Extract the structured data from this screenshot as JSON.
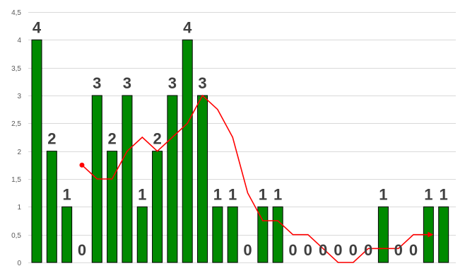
{
  "chart_data": {
    "type": "bar",
    "title": "",
    "xlabel": "",
    "ylabel": "",
    "ylim": [
      0,
      4.5
    ],
    "y_ticks": [
      "0",
      "0,5",
      "1",
      "1,5",
      "2",
      "2,5",
      "3",
      "3,5",
      "4",
      "4,5"
    ],
    "grid": true,
    "series": [
      {
        "type": "bar",
        "values": [
          4,
          2,
          1,
          0,
          3,
          2,
          3,
          1,
          2,
          3,
          4,
          3,
          1,
          1,
          0,
          1,
          1,
          0,
          0,
          0,
          0,
          0,
          0,
          1,
          0,
          0,
          1,
          1
        ],
        "data_labels": [
          "4",
          "2",
          "1",
          "0",
          "3",
          "2",
          "3",
          "1",
          "2",
          "3",
          "4",
          "3",
          "1",
          "1",
          "0",
          "1",
          "1",
          "0",
          "0",
          "0",
          "0",
          "0",
          "0",
          "1",
          "0",
          "0",
          "1",
          "1"
        ]
      },
      {
        "type": "line",
        "start_index": 3,
        "values": [
          1.75,
          1.5,
          1.5,
          2.0,
          2.25,
          2.0,
          2.25,
          2.5,
          3.0,
          2.75,
          2.25,
          1.25,
          0.75,
          0.75,
          0.5,
          0.5,
          0.25,
          0.0,
          0.0,
          0.25,
          0.25,
          0.25,
          0.5,
          0.5
        ]
      }
    ],
    "colors": {
      "bar": "#008a00",
      "bar_border": "#000000",
      "line": "#ff0000",
      "grid": "#d9d9d9",
      "label": "#404040"
    }
  }
}
